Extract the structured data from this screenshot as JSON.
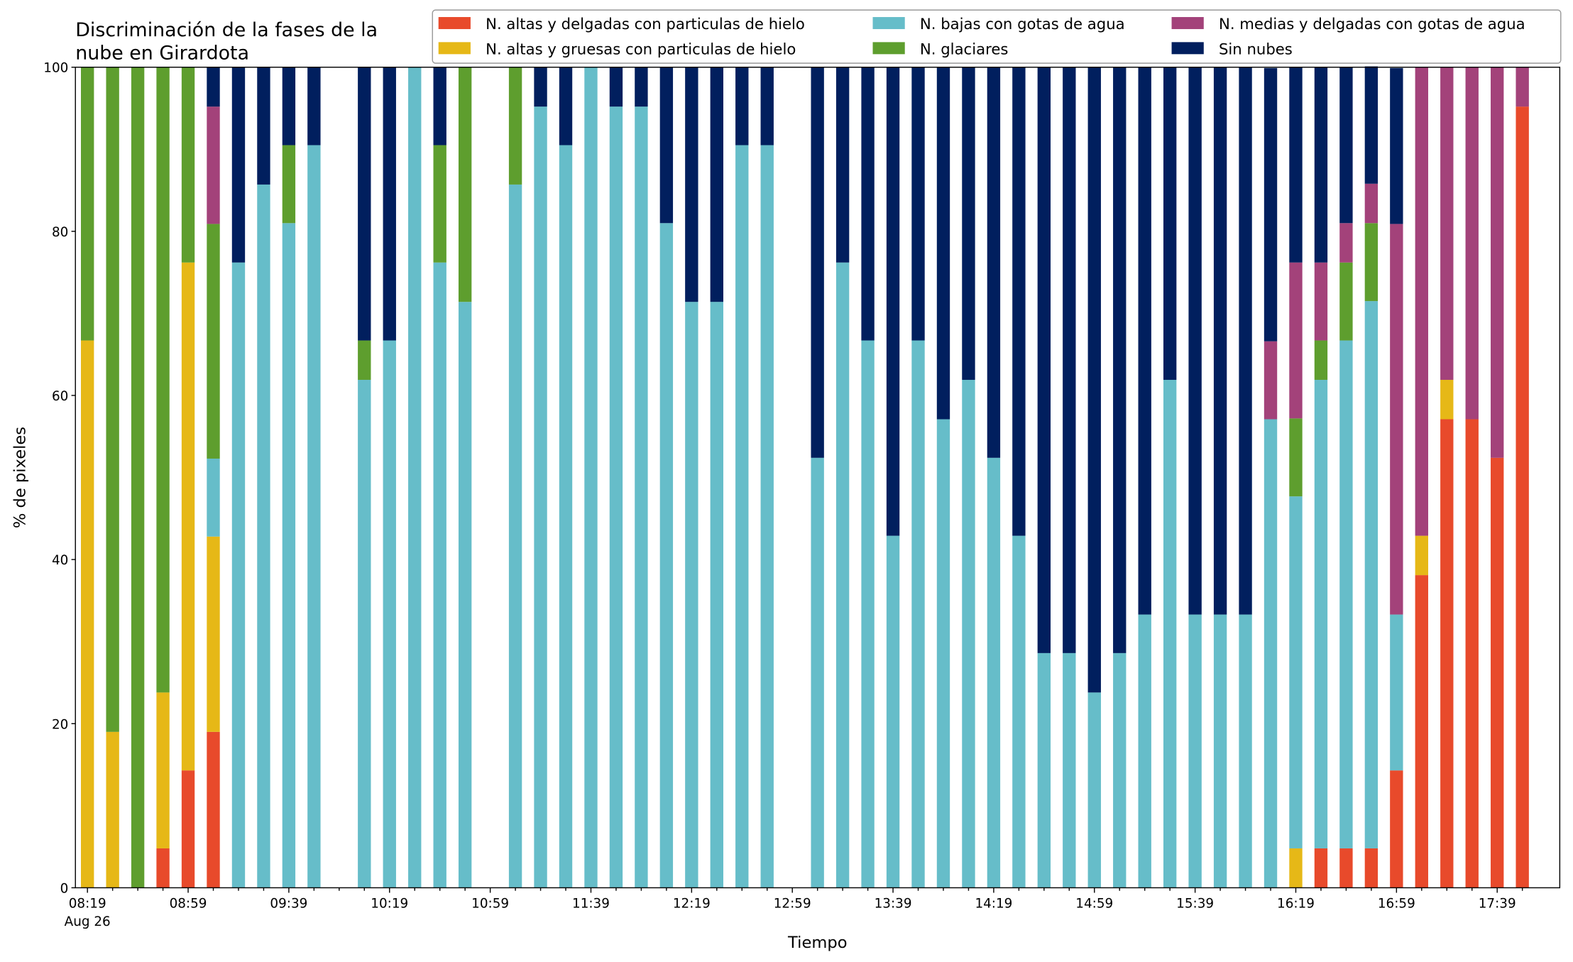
{
  "chart_data": {
    "type": "stacked_bar",
    "title": [
      "Discriminación de la fases de la",
      "nube en Girardota"
    ],
    "xlabel": "Tiempo",
    "ylabel": "% de pixeles",
    "date_label": "Aug 26",
    "categories": [
      "08:19",
      null,
      null,
      null,
      "08:59",
      null,
      null,
      null,
      "09:39",
      null,
      null,
      null,
      "10:19",
      null,
      null,
      null,
      "10:59",
      null,
      null,
      null,
      "11:39",
      null,
      null,
      null,
      "12:19",
      null,
      null,
      null,
      "12:59",
      null,
      null,
      null,
      "13:39",
      null,
      null,
      null,
      "14:19",
      null,
      null,
      null,
      "14:59",
      null,
      null,
      null,
      "15:39",
      null,
      null,
      null,
      "16:19",
      null,
      null,
      null,
      "16:59",
      null,
      null,
      null,
      "17:39",
      null
    ],
    "ylim": [
      0,
      100
    ],
    "yticks": [
      0,
      20,
      40,
      60,
      80,
      100
    ],
    "grid": false,
    "legend": "top",
    "series": [
      {
        "name": "N. altas y delgadas con particulas de hielo",
        "color": "#e84a2b",
        "values": [
          0,
          0,
          0,
          4.8,
          14.3,
          19.0,
          0,
          0,
          0,
          0,
          null,
          0,
          0,
          0,
          0,
          0,
          null,
          0,
          0,
          0,
          0,
          0,
          0,
          0,
          0,
          0,
          0,
          0,
          null,
          0,
          0,
          0,
          0,
          0,
          0,
          0,
          0,
          0,
          0,
          0,
          0,
          0,
          0,
          0,
          0,
          0,
          0,
          0,
          0,
          4.8,
          4.8,
          4.8,
          14.3,
          38.1,
          57.1,
          57.1,
          52.4,
          95.2
        ]
      },
      {
        "name": "N. altas y gruesas con particulas de hielo",
        "color": "#e6b817",
        "values": [
          66.7,
          19.0,
          0,
          19.0,
          61.9,
          23.8,
          0,
          0,
          0,
          0,
          null,
          0,
          0,
          0,
          0,
          0,
          null,
          0,
          0,
          0,
          0,
          0,
          0,
          0,
          0,
          0,
          0,
          0,
          null,
          0,
          0,
          0,
          0,
          0,
          0,
          0,
          0,
          0,
          0,
          0,
          0,
          0,
          0,
          0,
          0,
          0,
          0,
          0,
          4.8,
          0,
          0,
          0,
          0,
          4.8,
          4.8,
          0,
          0,
          0
        ]
      },
      {
        "name": "N. bajas con gotas de agua",
        "color": "#66bdc9",
        "values": [
          0,
          0,
          0,
          0,
          0,
          9.5,
          76.2,
          85.7,
          81.0,
          90.5,
          null,
          61.9,
          66.7,
          100,
          76.2,
          71.4,
          null,
          85.7,
          95.2,
          90.5,
          100,
          95.2,
          95.2,
          81.0,
          71.4,
          71.4,
          90.5,
          90.5,
          null,
          52.4,
          76.2,
          66.7,
          42.9,
          66.7,
          57.1,
          61.9,
          52.4,
          42.9,
          28.6,
          28.6,
          23.8,
          28.6,
          33.3,
          61.9,
          33.3,
          33.3,
          33.3,
          57.1,
          42.9,
          57.1,
          61.9,
          66.7,
          19.0,
          0,
          0,
          0,
          0,
          0
        ]
      },
      {
        "name": "N. glaciares",
        "color": "#5e9e2e",
        "values": [
          33.3,
          81.0,
          100,
          76.2,
          23.8,
          28.6,
          0,
          0,
          9.5,
          0,
          null,
          4.8,
          0,
          0,
          14.3,
          28.6,
          null,
          14.3,
          0,
          0,
          0,
          0,
          0,
          0,
          0,
          0,
          0,
          0,
          null,
          0,
          0,
          0,
          0,
          0,
          0,
          0,
          0,
          0,
          0,
          0,
          0,
          0,
          0,
          0,
          0,
          0,
          0,
          0,
          9.5,
          4.8,
          9.5,
          9.5,
          0,
          0,
          0,
          0,
          0,
          0
        ]
      },
      {
        "name": "N. medias y delgadas con gotas de agua",
        "color": "#a3427a",
        "values": [
          0,
          0,
          0,
          0,
          0,
          14.3,
          0,
          0,
          0,
          0,
          null,
          0,
          0,
          0,
          0,
          0,
          null,
          0,
          0,
          0,
          0,
          0,
          0,
          0,
          0,
          0,
          0,
          0,
          null,
          0,
          0,
          0,
          0,
          0,
          0,
          0,
          0,
          0,
          0,
          0,
          0,
          0,
          0,
          0,
          0,
          0,
          0,
          9.5,
          19.0,
          9.5,
          4.8,
          4.8,
          47.6,
          57.1,
          38.1,
          42.9,
          47.6,
          4.8
        ]
      },
      {
        "name": "Sin nubes",
        "color": "#011f5e",
        "values": [
          0,
          0,
          0,
          0,
          0,
          4.8,
          23.8,
          14.3,
          9.5,
          9.5,
          null,
          33.3,
          33.3,
          0,
          9.5,
          0,
          null,
          0,
          4.8,
          9.5,
          0,
          4.8,
          4.8,
          19.0,
          28.6,
          28.6,
          9.5,
          9.5,
          null,
          47.6,
          23.8,
          33.3,
          57.1,
          33.3,
          42.9,
          38.1,
          47.6,
          57.1,
          71.4,
          71.4,
          76.2,
          71.4,
          66.7,
          38.1,
          66.7,
          66.7,
          66.7,
          33.3,
          23.8,
          23.8,
          19.0,
          14.3,
          19.0,
          0,
          0,
          0,
          0,
          0
        ]
      }
    ]
  }
}
